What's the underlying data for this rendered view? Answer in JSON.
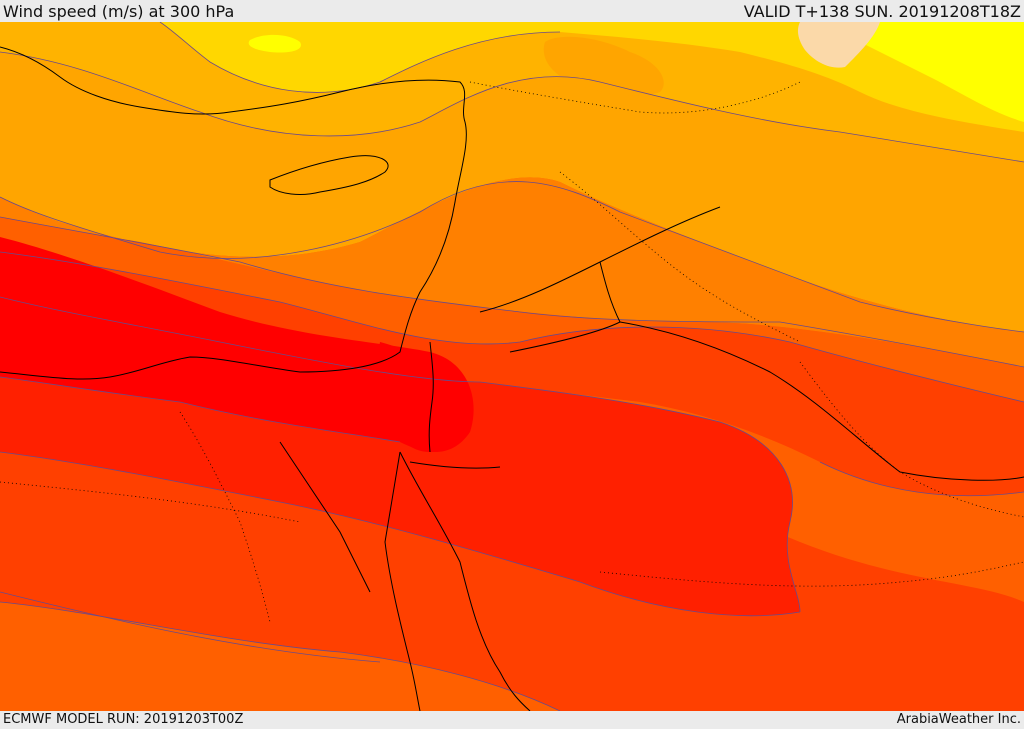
{
  "header": {
    "title": "Wind speed (m/s) at 300 hPa",
    "valid": "VALID T+138 SUN. 20191208T18Z"
  },
  "footer": {
    "model_run": "ECMWF MODEL RUN: 20191203T00Z",
    "credit": "ArabiaWeather Inc."
  },
  "colors": {
    "band_pale": "#fbd9a9",
    "band_yellow": "#ffff00",
    "band_gold": "#ffd700",
    "band_light_orange": "#ffb300",
    "band_orange": "#ffa500",
    "band_dark_orange": "#ff8000",
    "band_orange_red": "#ff6000",
    "band_red_orange": "#ff4000",
    "band_red": "#ff2000",
    "band_core": "#ff0000",
    "contour_line": "#6a4a8a",
    "coast_line": "#000000"
  },
  "icons": {
    "map": "wind-speed-map"
  }
}
